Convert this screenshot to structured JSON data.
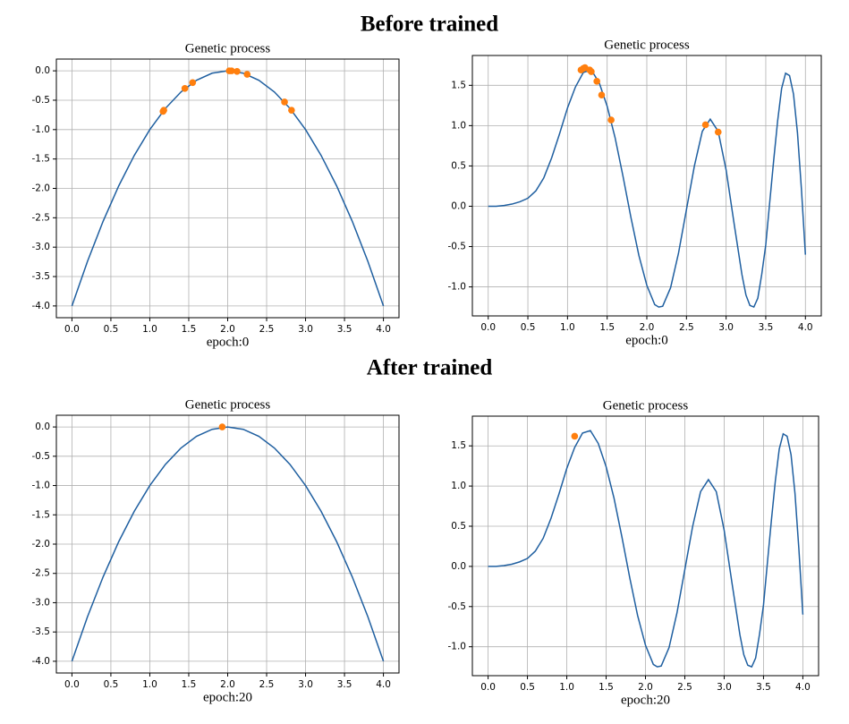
{
  "headings": [
    "Before trained",
    "After trained"
  ],
  "chart_data": [
    {
      "type": "line",
      "title": "Genetic process",
      "xlabel": "epoch:0",
      "grid": true,
      "xlim": [
        -0.2,
        4.2
      ],
      "ylim": [
        -4.2,
        0.2
      ],
      "xticks": [
        {
          "value": 0,
          "label": "0.0"
        },
        {
          "value": 0.5,
          "label": "0.5"
        },
        {
          "value": 1,
          "label": "1.0"
        },
        {
          "value": 1.5,
          "label": "1.5"
        },
        {
          "value": 2,
          "label": "2.0"
        },
        {
          "value": 2.5,
          "label": "2.5"
        },
        {
          "value": 3,
          "label": "3.0"
        },
        {
          "value": 3.5,
          "label": "3.5"
        },
        {
          "value": 4,
          "label": "4.0"
        }
      ],
      "yticks": [
        {
          "value": 0,
          "label": "0.0"
        },
        {
          "value": -0.5,
          "label": "-0.5"
        },
        {
          "value": -1,
          "label": "-1.0"
        },
        {
          "value": -1.5,
          "label": "-1.5"
        },
        {
          "value": -2,
          "label": "-2.0"
        },
        {
          "value": -2.5,
          "label": "-2.5"
        },
        {
          "value": -3,
          "label": "-3.0"
        },
        {
          "value": -3.5,
          "label": "-3.5"
        },
        {
          "value": -4,
          "label": "-4.0"
        }
      ],
      "curve": {
        "color": "#1f5fa0",
        "x": [
          0,
          0.2,
          0.4,
          0.6,
          0.8,
          1,
          1.2,
          1.4,
          1.6,
          1.8,
          2,
          2.2,
          2.4,
          2.6,
          2.8,
          3,
          3.2,
          3.4,
          3.6,
          3.8,
          4
        ],
        "values": [
          -4,
          -3.24,
          -2.56,
          -1.96,
          -1.44,
          -1,
          -0.64,
          -0.36,
          -0.16,
          -0.04,
          0,
          -0.04,
          -0.16,
          -0.36,
          -0.64,
          -1,
          -1.44,
          -1.96,
          -2.56,
          -3.24,
          -4
        ]
      },
      "points": {
        "color": "#ff7f0e",
        "x": [
          1.17,
          1.18,
          1.45,
          1.55,
          2.02,
          2.05,
          2.12,
          2.25,
          2.73,
          2.82
        ],
        "values": [
          -0.69,
          -0.67,
          -0.3,
          -0.2,
          0,
          0,
          -0.01,
          -0.06,
          -0.53,
          -0.67
        ]
      }
    },
    {
      "type": "line",
      "title": "Genetic process",
      "xlabel": "epoch:0",
      "grid": true,
      "xlim": [
        -0.2,
        4.2
      ],
      "ylim": [
        -1.36,
        1.87
      ],
      "xticks": [
        {
          "value": 0,
          "label": "0.0"
        },
        {
          "value": 0.5,
          "label": "0.5"
        },
        {
          "value": 1,
          "label": "1.0"
        },
        {
          "value": 1.5,
          "label": "1.5"
        },
        {
          "value": 2,
          "label": "2.0"
        },
        {
          "value": 2.5,
          "label": "2.5"
        },
        {
          "value": 3,
          "label": "3.0"
        },
        {
          "value": 3.5,
          "label": "3.5"
        },
        {
          "value": 4,
          "label": "4.0"
        }
      ],
      "yticks": [
        {
          "value": 1.5,
          "label": "1.5"
        },
        {
          "value": 1,
          "label": "1.0"
        },
        {
          "value": 0.5,
          "label": "0.5"
        },
        {
          "value": 0,
          "label": "0.0"
        },
        {
          "value": -0.5,
          "label": "-0.5"
        },
        {
          "value": -1,
          "label": "-1.0"
        }
      ],
      "curve": {
        "color": "#1f5fa0",
        "x": [
          0,
          0.1,
          0.2,
          0.3,
          0.4,
          0.5,
          0.6,
          0.7,
          0.8,
          0.9,
          1,
          1.1,
          1.2,
          1.3,
          1.4,
          1.5,
          1.6,
          1.7,
          1.8,
          1.9,
          2,
          2.1,
          2.15,
          2.2,
          2.3,
          2.4,
          2.5,
          2.6,
          2.7,
          2.8,
          2.9,
          3,
          3.1,
          3.2,
          3.25,
          3.3,
          3.35,
          3.4,
          3.45,
          3.5,
          3.55,
          3.6,
          3.65,
          3.7,
          3.75,
          3.8,
          3.85,
          3.9,
          3.95,
          4
        ],
        "values": [
          0,
          0,
          0.01,
          0.027,
          0.056,
          0.099,
          0.19,
          0.35,
          0.6,
          0.9,
          1.22,
          1.48,
          1.66,
          1.69,
          1.53,
          1.24,
          0.85,
          0.37,
          -0.14,
          -0.61,
          -0.98,
          -1.22,
          -1.25,
          -1.24,
          -1.01,
          -0.58,
          -0.04,
          0.5,
          0.93,
          1.08,
          0.93,
          0.45,
          -0.21,
          -0.85,
          -1.1,
          -1.23,
          -1.25,
          -1.14,
          -0.84,
          -0.48,
          0.05,
          0.57,
          1.06,
          1.46,
          1.65,
          1.62,
          1.39,
          0.91,
          0.21,
          -0.6
        ]
      },
      "points": {
        "color": "#ff7f0e",
        "x": [
          1.17,
          1.2,
          1.22,
          1.28,
          1.3,
          1.37,
          1.43,
          1.55,
          2.74,
          2.9
        ],
        "values": [
          1.69,
          1.71,
          1.72,
          1.69,
          1.67,
          1.55,
          1.38,
          1.07,
          1.01,
          0.92
        ]
      }
    },
    {
      "type": "line",
      "title": "Genetic process",
      "xlabel": "epoch:20",
      "grid": true,
      "xlim": [
        -0.2,
        4.2
      ],
      "ylim": [
        -4.2,
        0.2
      ],
      "xticks": [
        {
          "value": 0,
          "label": "0.0"
        },
        {
          "value": 0.5,
          "label": "0.5"
        },
        {
          "value": 1,
          "label": "1.0"
        },
        {
          "value": 1.5,
          "label": "1.5"
        },
        {
          "value": 2,
          "label": "2.0"
        },
        {
          "value": 2.5,
          "label": "2.5"
        },
        {
          "value": 3,
          "label": "3.0"
        },
        {
          "value": 3.5,
          "label": "3.5"
        },
        {
          "value": 4,
          "label": "4.0"
        }
      ],
      "yticks": [
        {
          "value": 0,
          "label": "0.0"
        },
        {
          "value": -0.5,
          "label": "-0.5"
        },
        {
          "value": -1,
          "label": "-1.0"
        },
        {
          "value": -1.5,
          "label": "-1.5"
        },
        {
          "value": -2,
          "label": "-2.0"
        },
        {
          "value": -2.5,
          "label": "-2.5"
        },
        {
          "value": -3,
          "label": "-3.0"
        },
        {
          "value": -3.5,
          "label": "-3.5"
        },
        {
          "value": -4,
          "label": "-4.0"
        }
      ],
      "curve": {
        "color": "#1f5fa0",
        "x": [
          0,
          0.2,
          0.4,
          0.6,
          0.8,
          1,
          1.2,
          1.4,
          1.6,
          1.8,
          2,
          2.2,
          2.4,
          2.6,
          2.8,
          3,
          3.2,
          3.4,
          3.6,
          3.8,
          4
        ],
        "values": [
          -4,
          -3.24,
          -2.56,
          -1.96,
          -1.44,
          -1,
          -0.64,
          -0.36,
          -0.16,
          -0.04,
          0,
          -0.04,
          -0.16,
          -0.36,
          -0.64,
          -1,
          -1.44,
          -1.96,
          -2.56,
          -3.24,
          -4
        ]
      },
      "points": {
        "color": "#ff7f0e",
        "x": [
          1.93
        ],
        "values": [
          0
        ]
      }
    },
    {
      "type": "line",
      "title": "Genetic process",
      "xlabel": "epoch:20",
      "grid": true,
      "xlim": [
        -0.2,
        4.2
      ],
      "ylim": [
        -1.36,
        1.87
      ],
      "xticks": [
        {
          "value": 0,
          "label": "0.0"
        },
        {
          "value": 0.5,
          "label": "0.5"
        },
        {
          "value": 1,
          "label": "1.0"
        },
        {
          "value": 1.5,
          "label": "1.5"
        },
        {
          "value": 2,
          "label": "2.0"
        },
        {
          "value": 2.5,
          "label": "2.5"
        },
        {
          "value": 3,
          "label": "3.0"
        },
        {
          "value": 3.5,
          "label": "3.5"
        },
        {
          "value": 4,
          "label": "4.0"
        }
      ],
      "yticks": [
        {
          "value": 1.5,
          "label": "1.5"
        },
        {
          "value": 1,
          "label": "1.0"
        },
        {
          "value": 0.5,
          "label": "0.5"
        },
        {
          "value": 0,
          "label": "0.0"
        },
        {
          "value": -0.5,
          "label": "-0.5"
        },
        {
          "value": -1,
          "label": "-1.0"
        }
      ],
      "curve": {
        "color": "#1f5fa0",
        "x": [
          0,
          0.1,
          0.2,
          0.3,
          0.4,
          0.5,
          0.6,
          0.7,
          0.8,
          0.9,
          1,
          1.1,
          1.2,
          1.3,
          1.4,
          1.5,
          1.6,
          1.7,
          1.8,
          1.9,
          2,
          2.1,
          2.15,
          2.2,
          2.3,
          2.4,
          2.5,
          2.6,
          2.7,
          2.8,
          2.9,
          3,
          3.1,
          3.2,
          3.25,
          3.3,
          3.35,
          3.4,
          3.45,
          3.5,
          3.55,
          3.6,
          3.65,
          3.7,
          3.75,
          3.8,
          3.85,
          3.9,
          3.95,
          4
        ],
        "values": [
          0,
          0,
          0.01,
          0.027,
          0.056,
          0.099,
          0.19,
          0.35,
          0.6,
          0.9,
          1.22,
          1.48,
          1.66,
          1.69,
          1.53,
          1.24,
          0.85,
          0.37,
          -0.14,
          -0.61,
          -0.98,
          -1.22,
          -1.25,
          -1.24,
          -1.01,
          -0.58,
          -0.04,
          0.5,
          0.93,
          1.08,
          0.93,
          0.45,
          -0.21,
          -0.85,
          -1.1,
          -1.23,
          -1.25,
          -1.14,
          -0.84,
          -0.48,
          0.05,
          0.57,
          1.06,
          1.46,
          1.65,
          1.62,
          1.39,
          0.91,
          0.21,
          -0.6
        ]
      },
      "points": {
        "color": "#ff7f0e",
        "x": [
          1.1
        ],
        "values": [
          1.62
        ]
      }
    }
  ]
}
